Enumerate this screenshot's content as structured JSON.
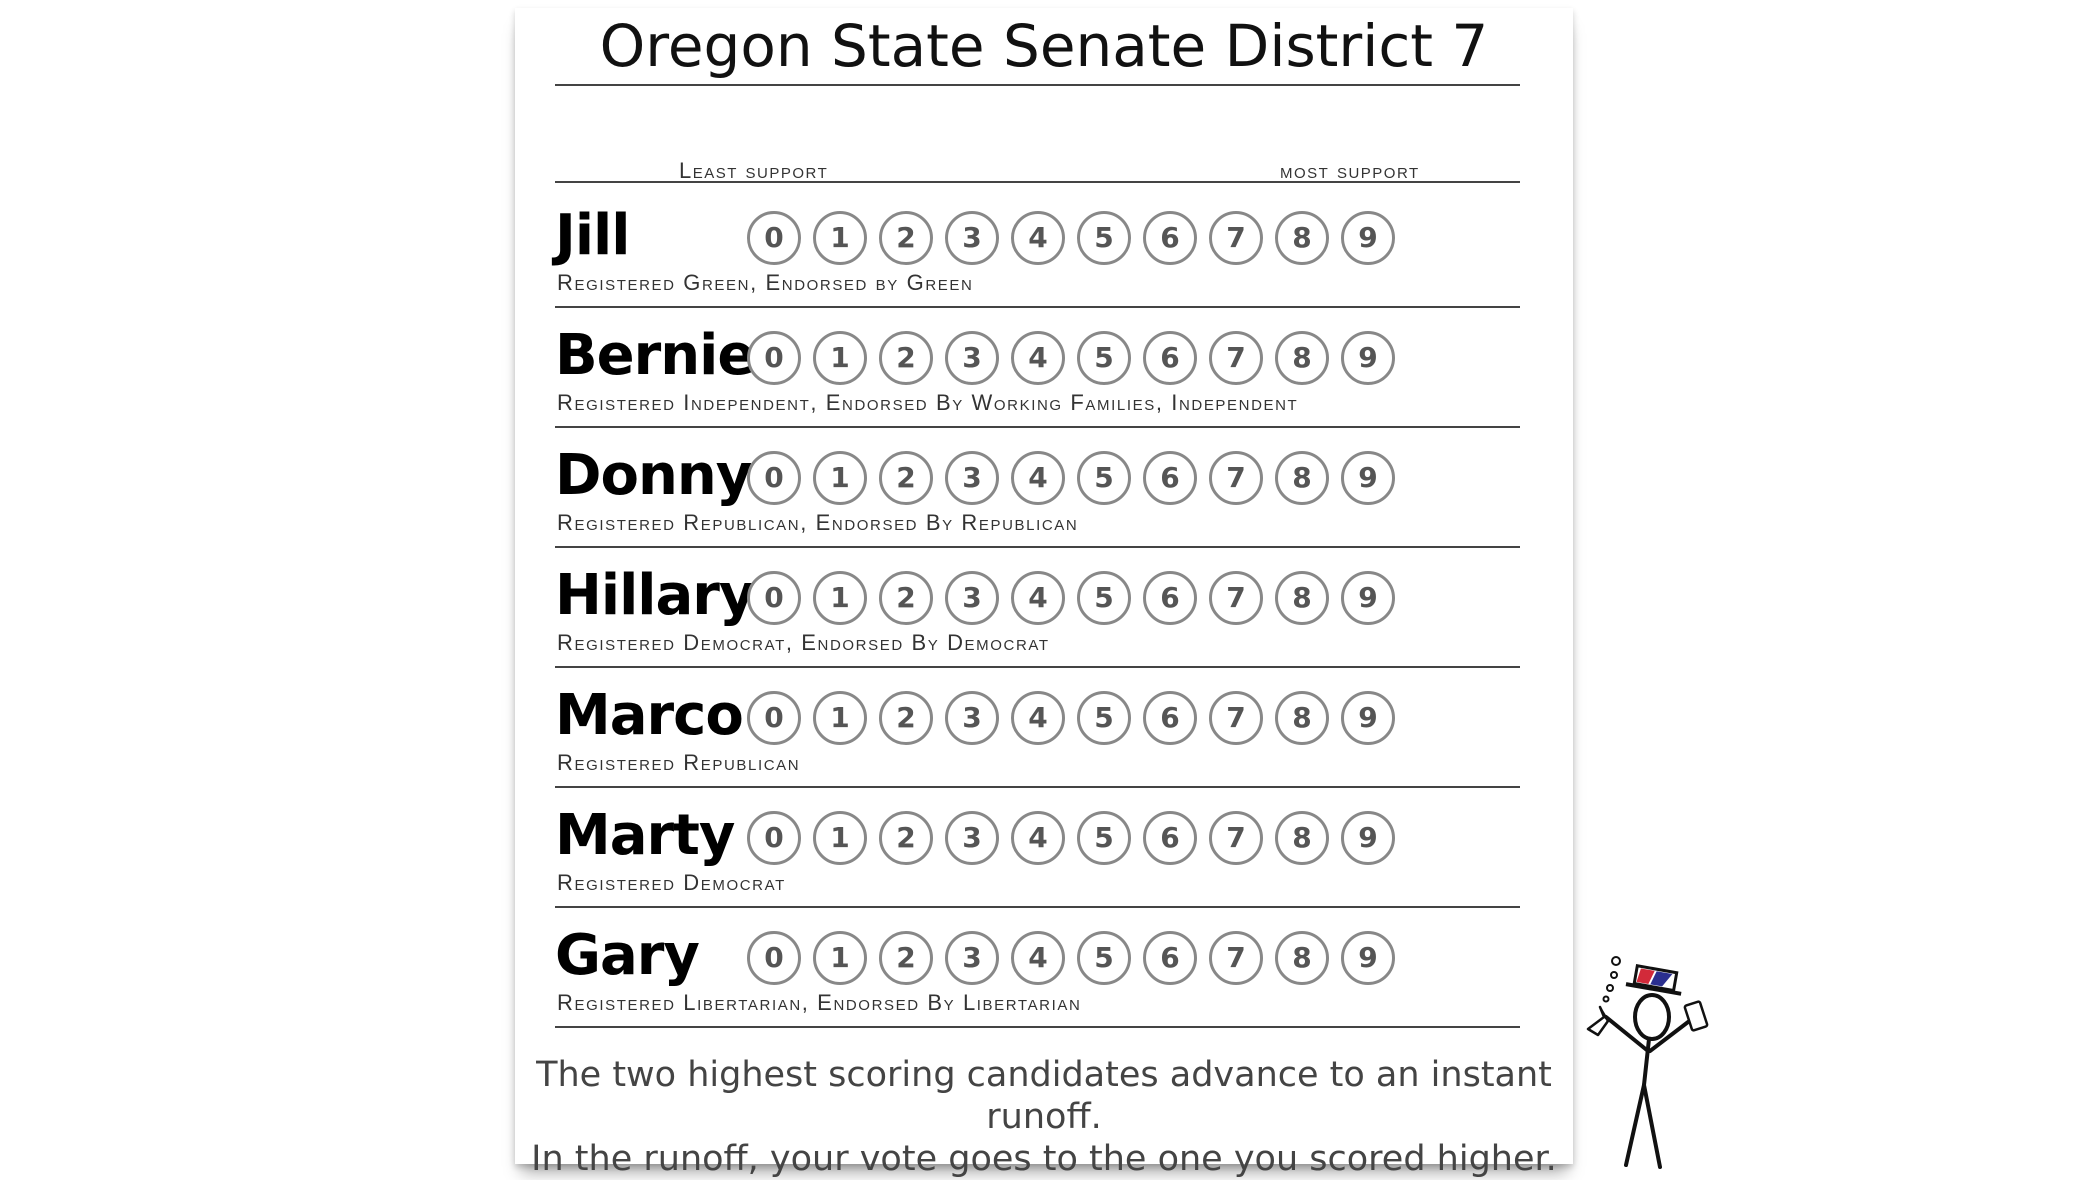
{
  "ballot": {
    "title": "Oregon State Senate District 7",
    "scale": {
      "least": "Least support",
      "most": "most support",
      "values": [
        "0",
        "1",
        "2",
        "3",
        "4",
        "5",
        "6",
        "7",
        "8",
        "9"
      ]
    },
    "candidates": [
      {
        "name": "Jill",
        "subtitle": "Registered Green, Endorsed by Green"
      },
      {
        "name": "Bernie",
        "subtitle": "Registered Independent, Endorsed By Working Families, Independent"
      },
      {
        "name": "Donny",
        "subtitle": "Registered Republican, Endorsed By Republican"
      },
      {
        "name": "Hillary",
        "subtitle": "Registered Democrat, Endorsed By Democrat"
      },
      {
        "name": "Marco",
        "subtitle": "Registered Republican"
      },
      {
        "name": "Marty",
        "subtitle": "Registered Democrat"
      },
      {
        "name": "Gary",
        "subtitle": "Registered Libertarian, Endorsed By Libertarian"
      }
    ],
    "footer_line1": "The two highest scoring candidates advance to an instant runoff.",
    "footer_line2": "In the runoff, your vote goes to the one you scored higher."
  },
  "mascot": {
    "icon": "stick-figure-scientist-icon",
    "hat_colors": [
      "#d22a3a",
      "#2b2f8f",
      "#ffffff"
    ]
  }
}
